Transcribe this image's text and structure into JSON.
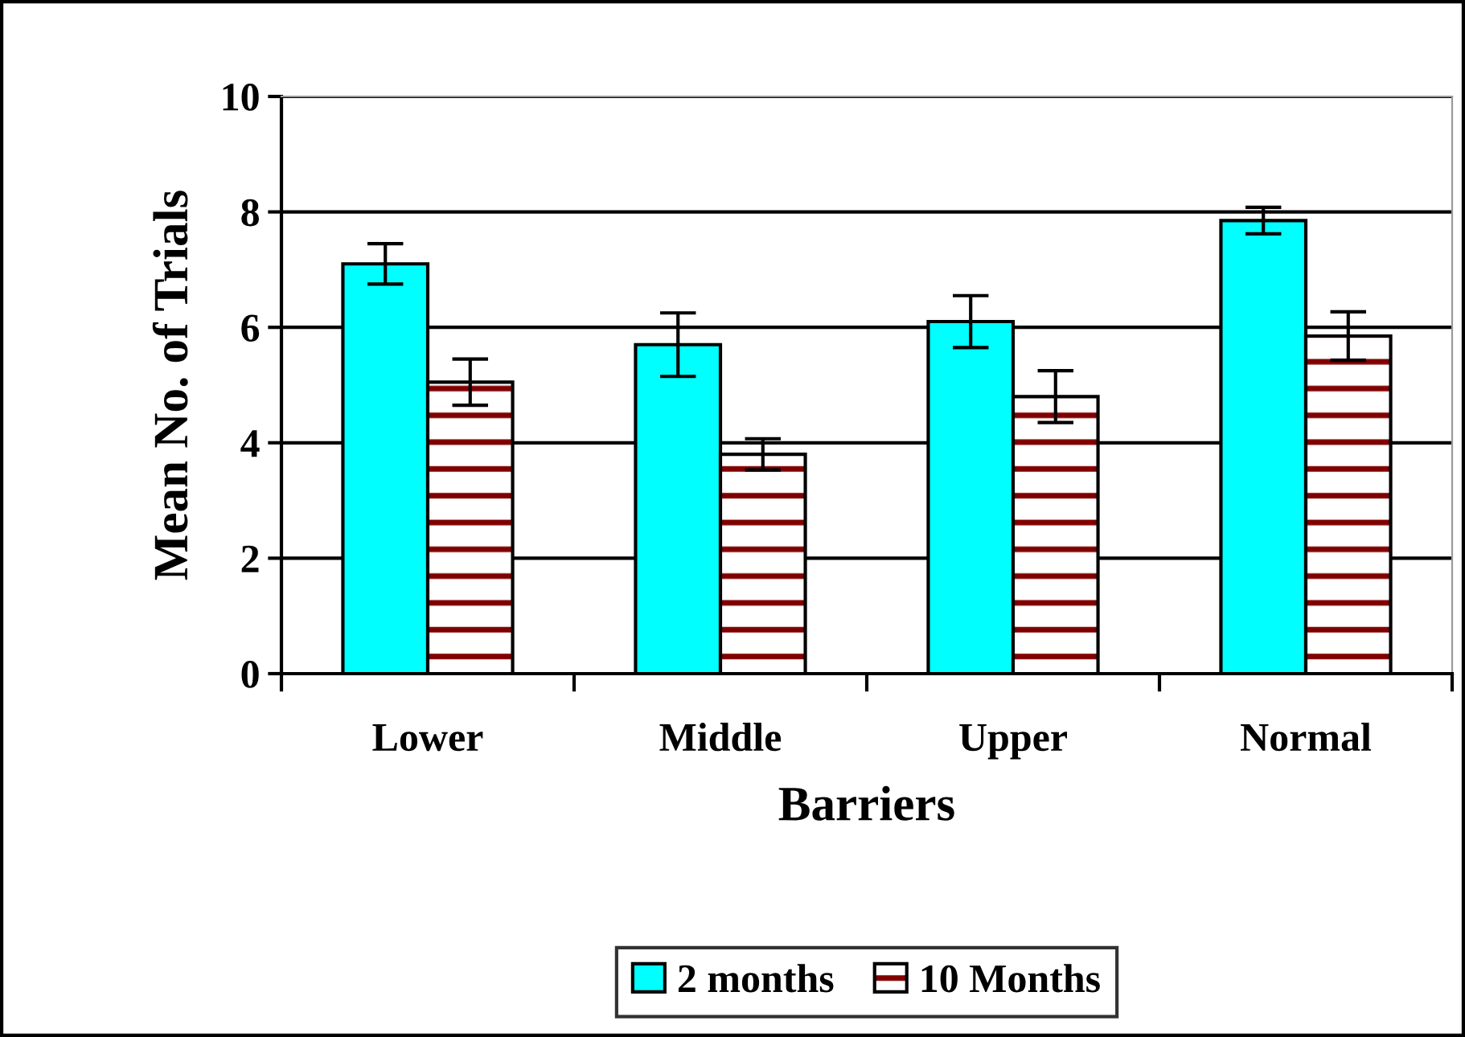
{
  "chart_data": {
    "type": "bar",
    "xlabel": "Barriers",
    "ylabel": "Mean No. of Trials",
    "categories": [
      "Lower",
      "Middle",
      "Upper",
      "Normal"
    ],
    "series": [
      {
        "name": "2 months",
        "color": "#00ffff",
        "values": [
          7.1,
          5.7,
          6.1,
          7.85
        ],
        "errors": [
          0.35,
          0.55,
          0.45,
          0.23
        ]
      },
      {
        "name": "10 Months",
        "color": "#800000",
        "values": [
          5.05,
          3.8,
          4.8,
          5.85
        ],
        "errors": [
          0.4,
          0.27,
          0.45,
          0.42
        ]
      }
    ],
    "ylim": [
      0,
      10
    ],
    "yticks": [
      0,
      2,
      4,
      6,
      8,
      10
    ],
    "grid": "y",
    "legend": "bottom"
  }
}
